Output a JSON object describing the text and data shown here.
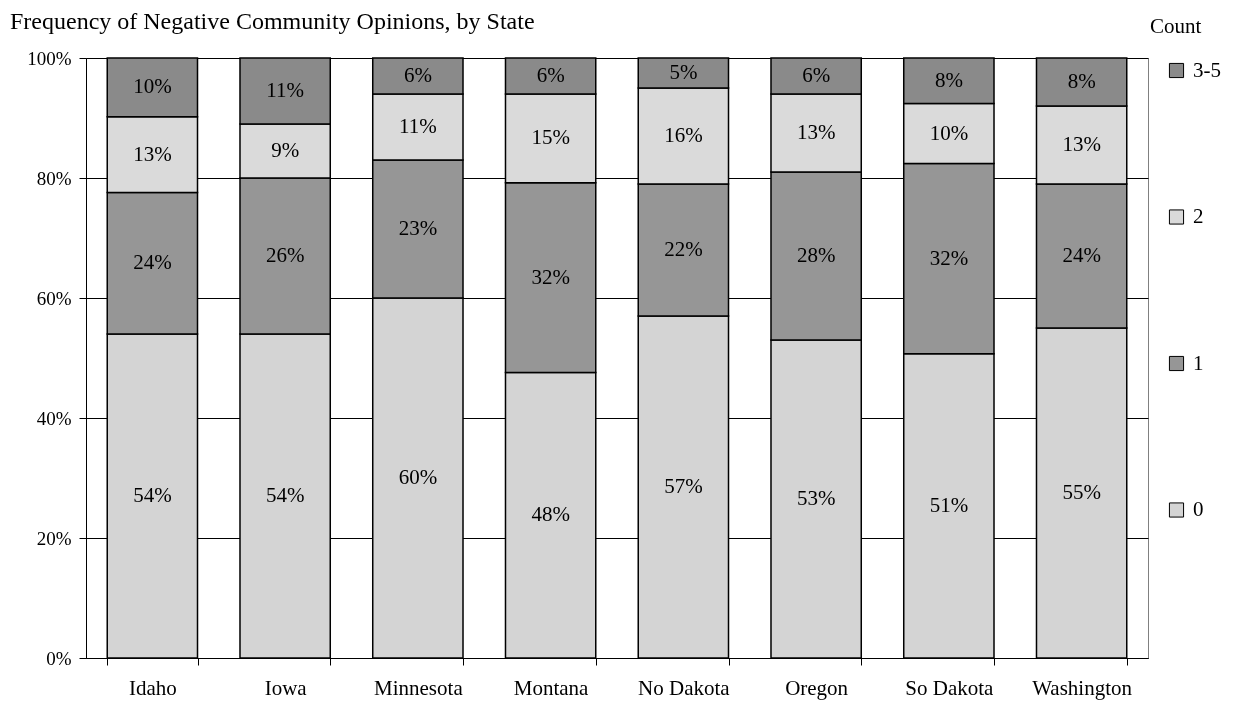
{
  "chart_data": {
    "type": "bar",
    "title": "Frequency of Negative Community Opinions, by State",
    "legend_title": "Count",
    "categories": [
      "Idaho",
      "Iowa",
      "Minnesota",
      "Montana",
      "No Dakota",
      "Oregon",
      "So Dakota",
      "Washington"
    ],
    "stacked": true,
    "series": [
      {
        "name": "0",
        "color": "#d4d4d4",
        "values": [
          54,
          54,
          60,
          47.6,
          57,
          53,
          50.7,
          55
        ],
        "value_labels": [
          "54%",
          "54%",
          "60%",
          "48%",
          "57%",
          "53%",
          "51%",
          "55%"
        ]
      },
      {
        "name": "1",
        "color": "#969696",
        "values": [
          23.6,
          26,
          23,
          31.6,
          22,
          28,
          31.7,
          24
        ],
        "value_labels": [
          "24%",
          "26%",
          "23%",
          "32%",
          "22%",
          "28%",
          "32%",
          "24%"
        ]
      },
      {
        "name": "2",
        "color": "#dadada",
        "values": [
          12.6,
          9,
          11,
          14.8,
          16,
          13,
          10,
          13
        ],
        "value_labels": [
          "13%",
          "9%",
          "11%",
          "15%",
          "16%",
          "13%",
          "10%",
          "13%"
        ]
      },
      {
        "name": "3-5",
        "color": "#8a8a8a",
        "values": [
          9.8,
          11,
          6,
          6,
          5,
          6,
          7.6,
          8
        ],
        "value_labels": [
          "10%",
          "11%",
          "6%",
          "6%",
          "5%",
          "6%",
          "8%",
          "8%"
        ]
      }
    ],
    "ylim": [
      0,
      100
    ],
    "yticks": [
      {
        "value": 0,
        "label": "0%"
      },
      {
        "value": 20,
        "label": "20%"
      },
      {
        "value": 40,
        "label": "40%"
      },
      {
        "value": 60,
        "label": "60%"
      },
      {
        "value": 80,
        "label": "80%"
      },
      {
        "value": 100,
        "label": "100%"
      }
    ],
    "grid": "y",
    "legend": "right"
  }
}
